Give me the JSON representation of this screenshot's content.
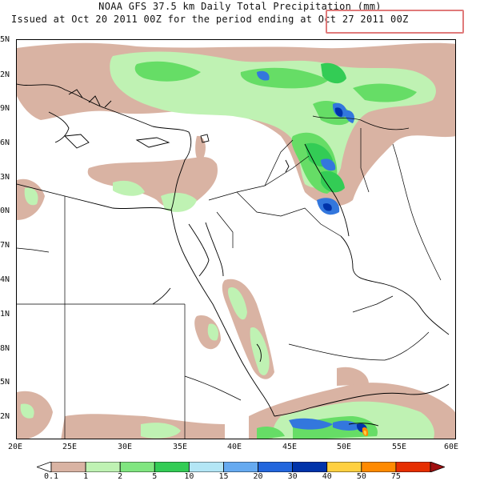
{
  "header": {
    "title": "NOAA GFS 37.5 km Daily Total Precipitation (mm)",
    "issued_prefix": "Issued at Oct 20 2011 00Z for the period ending ",
    "period_end": "at Oct 27 2011 00Z"
  },
  "axes": {
    "lat_labels": [
      "5N",
      "2N",
      "9N",
      "6N",
      "3N",
      "0N",
      "7N",
      "4N",
      "1N",
      "8N",
      "5N",
      "2N"
    ],
    "lon_labels": [
      "20E",
      "25E",
      "30E",
      "35E",
      "40E",
      "45E",
      "50E",
      "55E",
      "60E"
    ]
  },
  "legend": {
    "units": "mm",
    "levels": [
      "0.1",
      "1",
      "2",
      "5",
      "10",
      "15",
      "20",
      "30",
      "40",
      "50",
      "75"
    ],
    "colors": [
      "#ffffff",
      "#d9b3a3",
      "#bff2b3",
      "#80e680",
      "#33cc55",
      "#b3e6f5",
      "#66aaf0",
      "#2266dd",
      "#0033aa",
      "#ffd040",
      "#ff8a00",
      "#e62e00",
      "#a01010"
    ]
  },
  "colors": {
    "light_brown": "#d9b3a3",
    "light_green": "#bff2b3",
    "green": "#66dd66",
    "bright_green": "#33cc55",
    "blue": "#3377dd",
    "dark_blue": "#0033aa",
    "highlight_border": "#e07a7a"
  }
}
